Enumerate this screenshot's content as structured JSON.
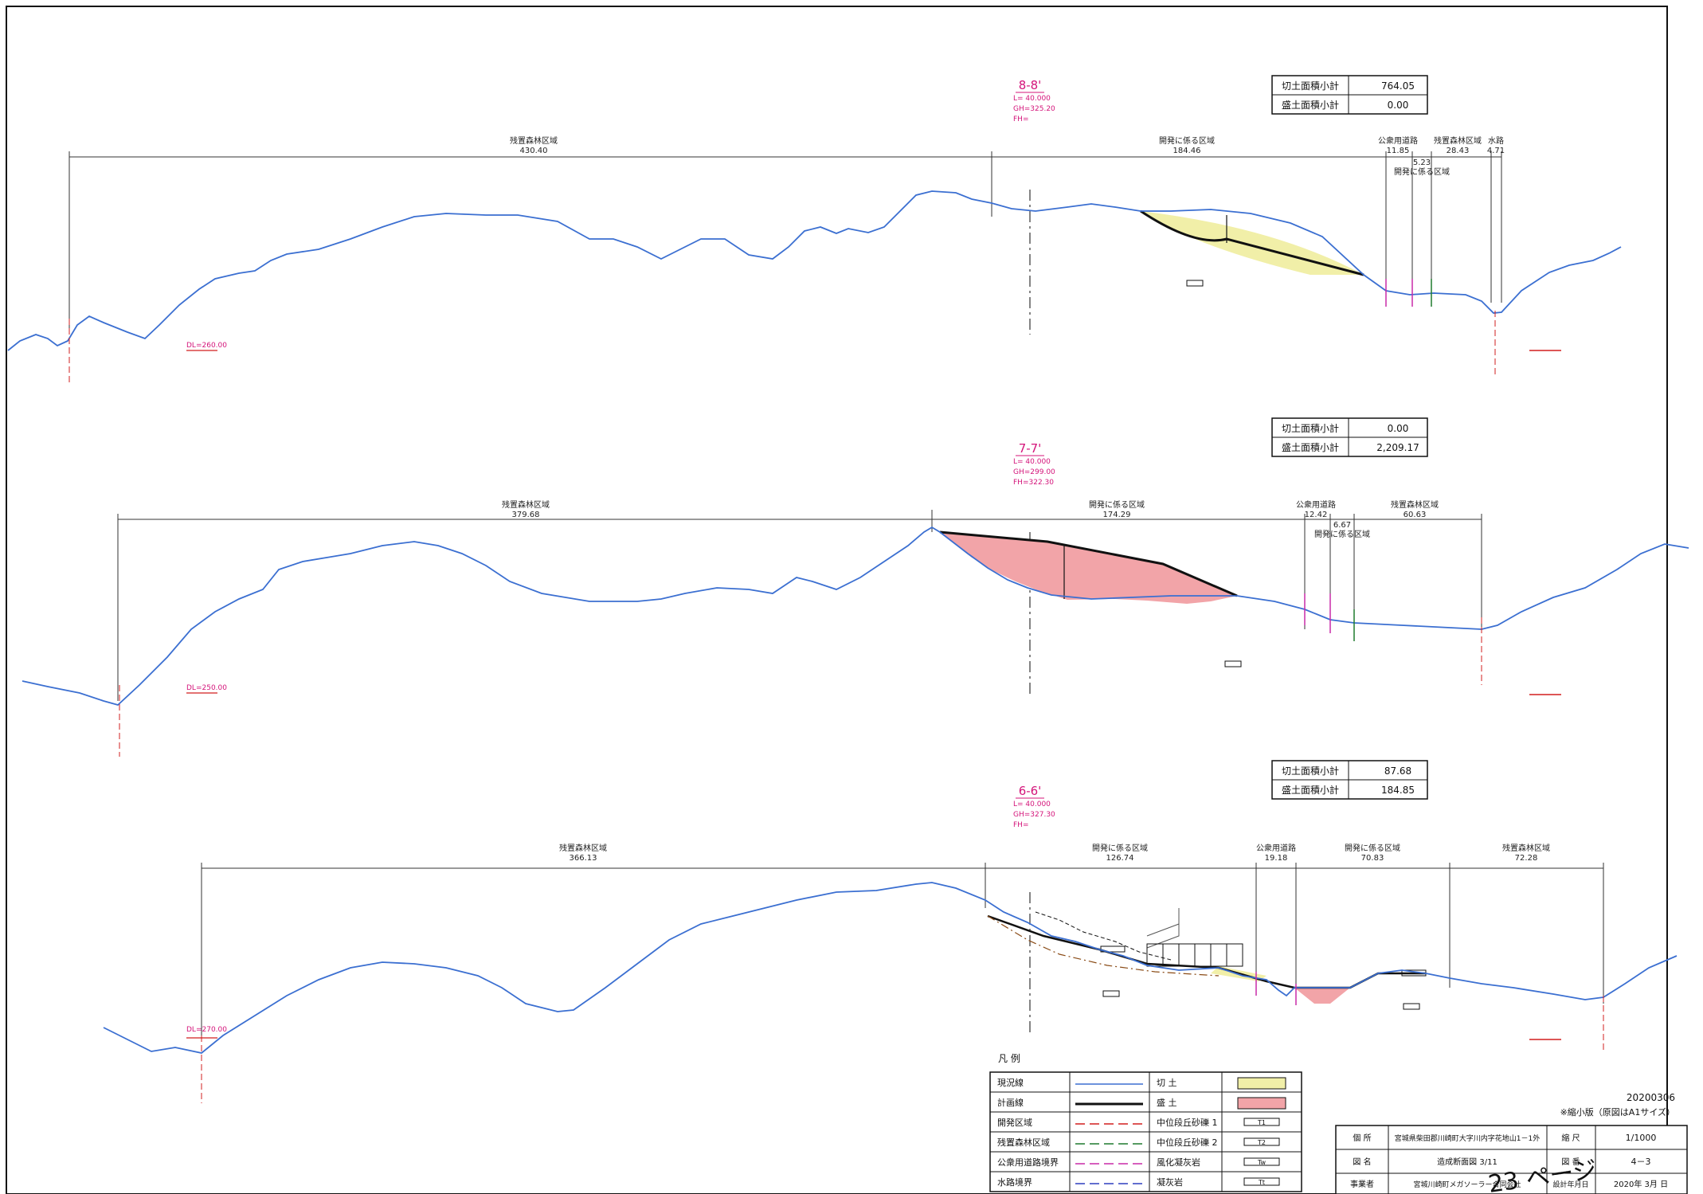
{
  "sections": [
    {
      "name": "8-8'",
      "L": "L= 40.000",
      "GH": "GH=325.20",
      "FH": "FH=",
      "DL": "DL=260.00",
      "summary": {
        "cut_label": "切土面積小計",
        "cut_value": "764.05",
        "fill_label": "盛土面積小計",
        "fill_value": "0.00"
      },
      "zones": [
        {
          "label": "残置森林区域",
          "dist": "430.40"
        },
        {
          "label": "開発に係る区域",
          "dist": "184.46"
        },
        {
          "label": "公衆用道路",
          "dist": "11.85"
        },
        {
          "label": "残置森林区域",
          "dist": "28.43"
        },
        {
          "label": "水路",
          "dist": "4.71"
        },
        {
          "label": "開発に係る区域",
          "dist": "5.23"
        }
      ]
    },
    {
      "name": "7-7'",
      "L": "L= 40.000",
      "GH": "GH=299.00",
      "FH": "FH=322.30",
      "DL": "DL=250.00",
      "summary": {
        "cut_label": "切土面積小計",
        "cut_value": "0.00",
        "fill_label": "盛土面積小計",
        "fill_value": "2,209.17"
      },
      "zones": [
        {
          "label": "残置森林区域",
          "dist": "379.68"
        },
        {
          "label": "開発に係る区域",
          "dist": "174.29"
        },
        {
          "label": "公衆用道路",
          "dist": "12.42"
        },
        {
          "label": "残置森林区域",
          "dist": "60.63"
        },
        {
          "label": "開発に係る区域",
          "dist": "6.67"
        }
      ]
    },
    {
      "name": "6-6'",
      "L": "L= 40.000",
      "GH": "GH=327.30",
      "FH": "FH=",
      "DL": "DL=270.00",
      "summary": {
        "cut_label": "切土面積小計",
        "cut_value": "87.68",
        "fill_label": "盛土面積小計",
        "fill_value": "184.85"
      },
      "zones": [
        {
          "label": "残置森林区域",
          "dist": "366.13"
        },
        {
          "label": "開発に係る区域",
          "dist": "126.74"
        },
        {
          "label": "公衆用道路",
          "dist": "19.18"
        },
        {
          "label": "開発に係る区域",
          "dist": "70.83"
        },
        {
          "label": "残置森林区域",
          "dist": "72.28"
        }
      ]
    }
  ],
  "legend": {
    "title": "凡 例",
    "rows": [
      {
        "left": "現況線",
        "right": "切 土"
      },
      {
        "left": "計画線",
        "right": "盛 土"
      },
      {
        "left": "開発区域",
        "right": "中位段丘砂礫 1"
      },
      {
        "left": "残置森林区域",
        "right": "中位段丘砂礫 2"
      },
      {
        "left": "公衆用道路境界",
        "right": "風化凝灰岩"
      },
      {
        "left": "水路境界",
        "right": "凝灰岩"
      }
    ],
    "symbols": [
      "T1",
      "T2",
      "Tw",
      "Tt"
    ]
  },
  "colors": {
    "existing": "#3b6fd1",
    "plan": "#111111",
    "dev": "#d21f1f",
    "forest": "#1f7a2e",
    "road": "#c82aa8",
    "water": "#2e3fbf",
    "cut_fill": "#f1efa8",
    "fill_fill": "#f2a4a8",
    "annotation": "#d4147a"
  },
  "meta": {
    "date": "20200306",
    "note": "※縮小版（原図はA1サイズ）"
  },
  "title_block": {
    "location_label": "個 所",
    "location": "宮城県柴田郡川崎町大字川内字花地山1－1外",
    "scale_label": "縮 尺",
    "scale": "1/1000",
    "drawing_label": "図 名",
    "drawing": "造成断面図 3/11",
    "sheet_label": "図 番",
    "sheet": "4－3",
    "owner_label": "事業者",
    "owner": "宮城川崎町メガソーラー合同会社",
    "date_label": "設計年月日",
    "date": "2020年 3月 日"
  },
  "page_stamp": "23 ページ"
}
